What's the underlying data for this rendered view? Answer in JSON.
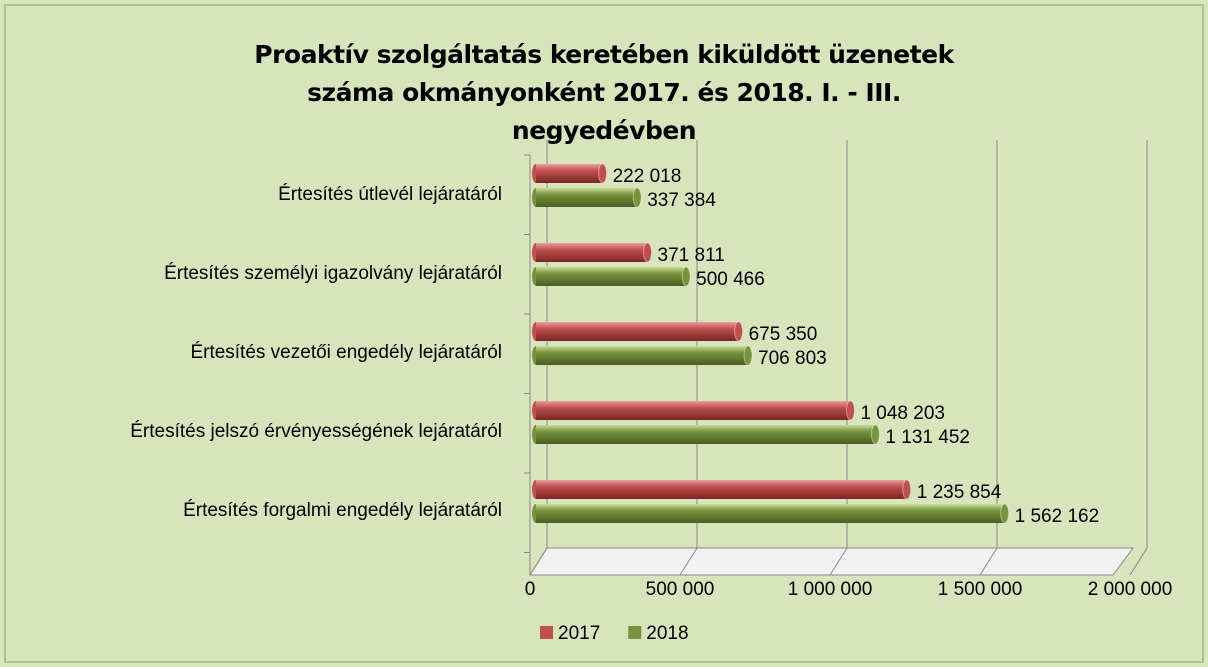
{
  "chart_data": {
    "type": "bar",
    "orientation": "horizontal",
    "title": "Proaktív szolgáltatás keretében kiküldött üzenetek száma okmányonként 2017. és 2018. I. - III. negyedévben",
    "categories": [
      "Értesítés útlevél lejáratáról",
      "Értesítés személyi igazolvány lejáratáról",
      "Értesítés vezetői engedély lejáratáról",
      "Értesítés jelszó érvényességének lejáratáról",
      "Értesítés forgalmi engedély lejáratáról"
    ],
    "series": [
      {
        "name": "2017",
        "color": "#c0504d",
        "values": [
          222018,
          371811,
          675350,
          1048203,
          1235854
        ],
        "value_labels": [
          "222 018",
          "371 811",
          "675 350",
          "1 048 203",
          "1 235 854"
        ]
      },
      {
        "name": "2018",
        "color": "#77933c",
        "values": [
          337384,
          500466,
          706803,
          1131452,
          1562162
        ],
        "value_labels": [
          "337 384",
          "500 466",
          "706 803",
          "1 131 452",
          "1 562 162"
        ]
      }
    ],
    "xlim": [
      0,
      2000000
    ],
    "xticks": [
      0,
      {
        "value": 500000,
        "label": "500 000"
      },
      {
        "value": 1000000,
        "label": "1 000 000"
      },
      {
        "value": 1500000,
        "label": "1 500 000"
      },
      {
        "value": 2000000,
        "label": "2 000 000"
      }
    ],
    "grid": true,
    "legend": "bottom"
  }
}
